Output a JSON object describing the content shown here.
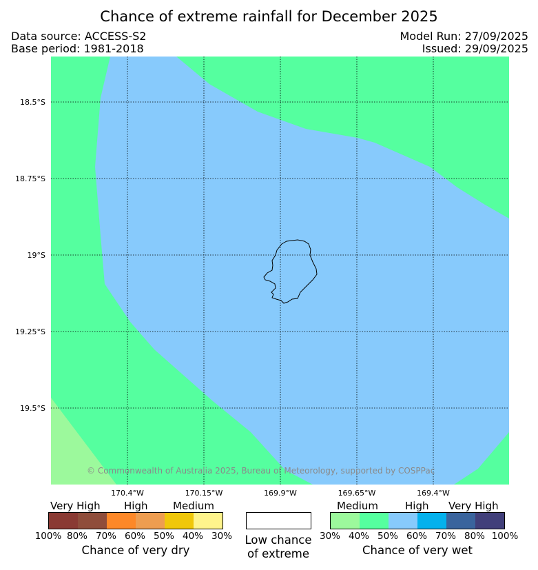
{
  "title": "Chance of extreme rainfall for December 2025",
  "data_source": "Data source: ACCESS-S2",
  "base_period": "Base period: 1981-2018",
  "model_run": "Model Run: 27/09/2025",
  "issued": "Issued: 29/09/2025",
  "map": {
    "copyright": "© Commonwealth of Australia 2025, Bureau of Meteorology, supported by COSPPac",
    "lat_labels": [
      "18.5°S",
      "18.75°S",
      "19°S",
      "19.25°S",
      "19.5°S"
    ],
    "lon_labels": [
      "170.4°W",
      "170.15°W",
      "169.9°W",
      "169.65°W",
      "169.4°W"
    ],
    "colors": {
      "medium_wet": "#55ff9f",
      "low_medium_wet": "#9cf99c",
      "high_wet": "#87cafc",
      "coastline": "#000000"
    },
    "island_name_icon": "niue-island-outline"
  },
  "legend": {
    "dry": {
      "labels": [
        "Very High",
        "High",
        "Medium"
      ],
      "colors": [
        "#8a3a33",
        "#8f4d3b",
        "#fd8828",
        "#ee9d50",
        "#f0c70a",
        "#fef48c"
      ],
      "ticks": [
        "100%",
        "80%",
        "70%",
        "60%",
        "50%",
        "40%",
        "30%"
      ],
      "caption": "Chance of very dry"
    },
    "neutral": {
      "color": "#ffffff",
      "caption_line1": "Low chance",
      "caption_line2": "of extreme"
    },
    "wet": {
      "labels": [
        "Medium",
        "High",
        "Very High"
      ],
      "colors": [
        "#9cf99c",
        "#55ff9f",
        "#87cafc",
        "#04b1ed",
        "#3a649d",
        "#413f7a"
      ],
      "ticks": [
        "30%",
        "40%",
        "50%",
        "60%",
        "70%",
        "80%",
        "100%"
      ],
      "caption": "Chance of very wet"
    }
  }
}
